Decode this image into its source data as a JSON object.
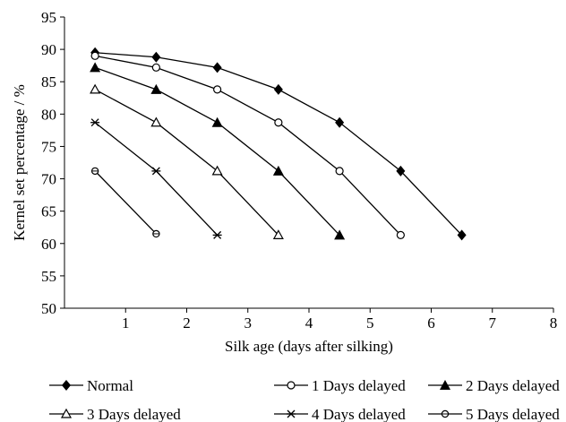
{
  "chart_data": {
    "type": "line",
    "title": "",
    "xlabel": "Silk age (days after silking)",
    "ylabel": "Kernel set percentage / %",
    "xlim": [
      0,
      8
    ],
    "ylim": [
      50,
      95
    ],
    "xticks": [
      1,
      2,
      3,
      4,
      5,
      6,
      7,
      8
    ],
    "yticks": [
      50,
      55,
      60,
      65,
      70,
      75,
      80,
      85,
      90,
      95
    ],
    "grid": false,
    "legend_position": "bottom",
    "series": [
      {
        "name": "Normal",
        "marker": "filled-diamond",
        "x": [
          0.5,
          1.5,
          2.5,
          3.5,
          4.5,
          5.5,
          6.5
        ],
        "y": [
          89.5,
          88.8,
          87.2,
          83.8,
          78.7,
          71.2,
          61.3
        ]
      },
      {
        "name": "1 Days delayed",
        "marker": "open-circle",
        "x": [
          0.5,
          1.5,
          2.5,
          3.5,
          4.5,
          5.5
        ],
        "y": [
          89.0,
          87.2,
          83.8,
          78.7,
          71.2,
          61.3
        ]
      },
      {
        "name": "2 Days delayed",
        "marker": "filled-triangle",
        "x": [
          0.5,
          1.5,
          2.5,
          3.5,
          4.5
        ],
        "y": [
          87.2,
          83.8,
          78.7,
          71.2,
          61.3
        ]
      },
      {
        "name": "3 Days delayed",
        "marker": "open-triangle",
        "x": [
          0.5,
          1.5,
          2.5,
          3.5
        ],
        "y": [
          83.8,
          78.7,
          71.2,
          61.3
        ]
      },
      {
        "name": "4 Days delayed",
        "marker": "asterisk",
        "x": [
          0.5,
          1.5,
          2.5
        ],
        "y": [
          78.7,
          71.2,
          61.3
        ]
      },
      {
        "name": "5 Days delayed",
        "marker": "open-circle-dash",
        "x": [
          0.5,
          1.5
        ],
        "y": [
          71.2,
          61.5
        ]
      }
    ]
  }
}
